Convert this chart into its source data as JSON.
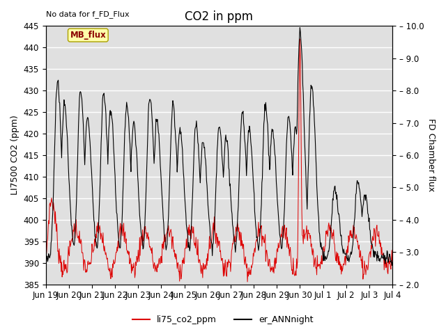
{
  "title": "CO2 in ppm",
  "ylabel_left": "LI7500 CO2 (ppm)",
  "ylabel_right": "FD Chamber flux",
  "ylim_left": [
    385,
    445
  ],
  "ylim_right": [
    2.0,
    10.0
  ],
  "no_data_text": "No data for f_FD_Flux",
  "mb_flux_label": "MB_flux",
  "legend_labels": [
    "li75_co2_ppm",
    "er_ANNnight"
  ],
  "line_colors": [
    "#dd0000",
    "#000000"
  ],
  "background_color": "#e0e0e0",
  "figure_background": "#ffffff",
  "grid_color": "#ffffff",
  "title_fontsize": 12,
  "label_fontsize": 9,
  "tick_fontsize": 8.5,
  "yticks_left": [
    385,
    390,
    395,
    400,
    405,
    410,
    415,
    420,
    425,
    430,
    435,
    440,
    445
  ],
  "yticks_right": [
    2.0,
    3.0,
    4.0,
    5.0,
    6.0,
    7.0,
    8.0,
    9.0,
    10.0
  ]
}
